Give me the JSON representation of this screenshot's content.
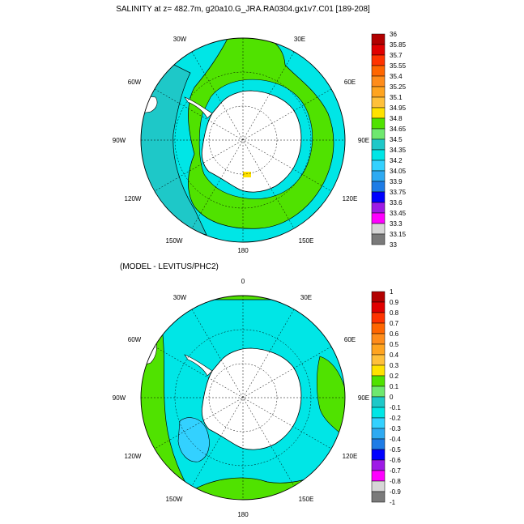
{
  "panel1": {
    "title": "SALINITY at z= 482.7m, g20a10.G_JRA.RA0304.gx1v7.C01 [189-208]",
    "labels": {
      "top": "",
      "r30e": "30E",
      "r60e": "60E",
      "r90e": "90E",
      "r120e": "120E",
      "r150e": "150E",
      "bottom": "180",
      "l150w": "150W",
      "l120w": "120W",
      "l90w": "90W",
      "l60w": "60W",
      "l30w": "30W"
    },
    "colorbar": {
      "ticks": [
        "36",
        "35.85",
        "35.7",
        "35.55",
        "35.4",
        "35.25",
        "35.1",
        "34.95",
        "34.8",
        "34.65",
        "34.5",
        "34.35",
        "34.2",
        "34.05",
        "33.9",
        "33.75",
        "33.6",
        "33.45",
        "33.3",
        "33.15",
        "33"
      ],
      "colors": [
        "#b20000",
        "#e00000",
        "#ff3300",
        "#ff6600",
        "#ff8c1a",
        "#ffa41f",
        "#ffc03a",
        "#ffe200",
        "#50e200",
        "#6fe86f",
        "#1ec8c8",
        "#00e6e6",
        "#33d1ff",
        "#2eaaf2",
        "#1e7ce6",
        "#0000ff",
        "#9e1ae6",
        "#ff00ff",
        "#d6d6d6",
        "#7a7a7a"
      ]
    }
  },
  "panel2": {
    "title": "(MODEL - LEVITUS/PHC2)",
    "labels": {
      "top": "0",
      "r30e": "30E",
      "r60e": "60E",
      "r90e": "90E",
      "r120e": "120E",
      "r150e": "150E",
      "bottom": "180",
      "l150w": "150W",
      "l120w": "120W",
      "l90w": "90W",
      "l60w": "60W",
      "l30w": "30W"
    },
    "colorbar": {
      "ticks": [
        "1",
        "0.9",
        "0.8",
        "0.7",
        "0.6",
        "0.5",
        "0.4",
        "0.3",
        "0.2",
        "0.1",
        "0",
        "-0.1",
        "-0.2",
        "-0.3",
        "-0.4",
        "-0.5",
        "-0.6",
        "-0.7",
        "-0.8",
        "-0.9",
        "-1"
      ],
      "colors": [
        "#b20000",
        "#e00000",
        "#ff3300",
        "#ff6600",
        "#ff8c1a",
        "#ffa41f",
        "#ffc03a",
        "#ffe200",
        "#50e200",
        "#6fe86f",
        "#1ec8c8",
        "#00e6e6",
        "#33d1ff",
        "#2eaaf2",
        "#1e7ce6",
        "#0000ff",
        "#9e1ae6",
        "#ff00ff",
        "#d6d6d6",
        "#7a7a7a"
      ]
    }
  },
  "colors": {
    "ocean_cyan": "#00e6e6",
    "ocean_teal": "#1ec8c8",
    "ocean_green": "#50e200",
    "land": "#ffffff",
    "light_blue": "#33d1ff"
  }
}
